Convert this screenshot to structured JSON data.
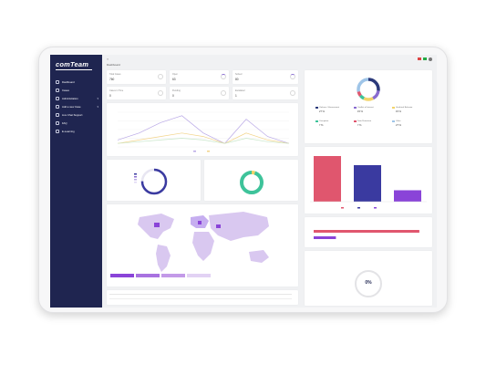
{
  "app": {
    "logo": "comTeam"
  },
  "sidebar": {
    "items": [
      {
        "label": "Dashboard",
        "icon": "dashboard-icon",
        "chevron": false
      },
      {
        "label": "Cases",
        "icon": "cases-icon",
        "chevron": false
      },
      {
        "label": "Administration",
        "icon": "admin-icon",
        "chevron": true
      },
      {
        "label": "Add a new Case",
        "icon": "add-case-icon",
        "chevron": true
      },
      {
        "label": "Live Chat Support",
        "icon": "chat-icon",
        "chevron": false
      },
      {
        "label": "FAQ",
        "icon": "faq-icon",
        "chevron": false
      },
      {
        "label": "E-Learning",
        "icon": "elearning-icon",
        "chevron": false
      }
    ]
  },
  "header": {
    "breadcrumb": "Dashboard"
  },
  "stats": [
    {
      "label": "Total Cases",
      "value": "760"
    },
    {
      "label": "Open",
      "value": "63"
    },
    {
      "label": "Solved",
      "value": "80"
    },
    {
      "label": "Cases in Time",
      "value": "0"
    },
    {
      "label": "Pending",
      "value": "0"
    },
    {
      "label": "Escalated",
      "value": "1"
    }
  ],
  "top_categories": {
    "colors": [
      "#2c3a7a",
      "#8a6cd0",
      "#f2d46a",
      "#3ec39a",
      "#e0566e",
      "#9fc5e8"
    ],
    "items": [
      {
        "label": "Violence / Harassment",
        "value": "27 %"
      },
      {
        "label": "Conflict of Interest",
        "value": "15 %"
      },
      {
        "label": "Unethical Behavior",
        "value": "15 %"
      },
      {
        "label": "Corruption",
        "value": "7 %"
      },
      {
        "label": "Data Protection",
        "value": "7 %"
      },
      {
        "label": "Other",
        "value": "27 %"
      }
    ]
  },
  "chart_data": [
    {
      "type": "line",
      "series": [
        {
          "values": [
            2,
            4,
            7,
            9,
            4,
            1,
            8,
            3,
            1
          ],
          "color": "#b9a8e6"
        },
        {
          "values": [
            1,
            2,
            3,
            4,
            3,
            1,
            4,
            2,
            1
          ],
          "color": "#f2d48a"
        },
        {
          "values": [
            1,
            1.5,
            2,
            2.5,
            2,
            1,
            2.5,
            1.5,
            1
          ],
          "color": "#c8e6c9"
        }
      ]
    },
    {
      "type": "bar",
      "categories": [
        "A",
        "B",
        "C"
      ],
      "values": [
        100,
        80,
        25
      ],
      "colors": [
        "#e0566e",
        "#3a3aa0",
        "#8a44d8"
      ]
    },
    {
      "type": "bar",
      "orientation": "horizontal",
      "values": [
        95,
        20
      ],
      "colors": [
        "#e0566e",
        "#8a44d8"
      ]
    }
  ],
  "progress": {
    "value": "0%"
  },
  "status_donut": {
    "segments": [
      0.05,
      0.95
    ],
    "colors": [
      "#f2d46a",
      "#3ec39a"
    ]
  },
  "ring_small": {
    "fraction": 0.75,
    "color": "#3a3aa0"
  }
}
